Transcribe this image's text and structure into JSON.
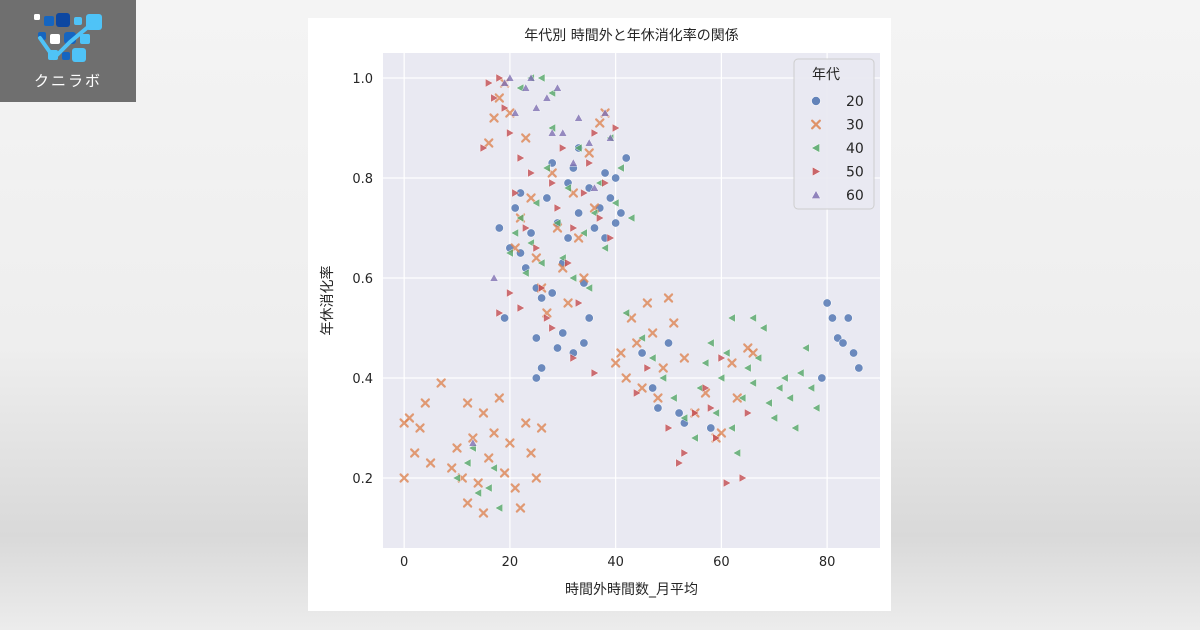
{
  "brand": {
    "logo_text": "クニラボ",
    "badge_color": "#6f6f6f",
    "logo_colors": [
      "#ffffff",
      "#4fc3f7",
      "#1565c0",
      "#0d47a1"
    ]
  },
  "chart_data": {
    "type": "scatter",
    "title": "年代別 時間外と年休消化率の関係",
    "xlabel": "時間外時間数_月平均",
    "ylabel": "年休消化率",
    "xlim": [
      -4,
      90
    ],
    "ylim": [
      0.06,
      1.05
    ],
    "xticks": [
      "0",
      "20",
      "40",
      "60",
      "80"
    ],
    "yticks": [
      "0.2",
      "0.4",
      "0.6",
      "0.8",
      "1.0"
    ],
    "grid": true,
    "background": "#e9e9f2",
    "legend": {
      "title": "年代",
      "placement": "top-right"
    },
    "series": [
      {
        "name": "20",
        "marker": "circle",
        "color": "#4c72b0",
        "points": [
          [
            18,
            0.7
          ],
          [
            19,
            0.52
          ],
          [
            20,
            0.66
          ],
          [
            21,
            0.74
          ],
          [
            22,
            0.77
          ],
          [
            22,
            0.65
          ],
          [
            23,
            0.62
          ],
          [
            24,
            0.69
          ],
          [
            25,
            0.58
          ],
          [
            25,
            0.48
          ],
          [
            26,
            0.56
          ],
          [
            27,
            0.76
          ],
          [
            28,
            0.83
          ],
          [
            28,
            0.57
          ],
          [
            29,
            0.71
          ],
          [
            30,
            0.63
          ],
          [
            30,
            0.49
          ],
          [
            31,
            0.79
          ],
          [
            31,
            0.68
          ],
          [
            32,
            0.82
          ],
          [
            33,
            0.86
          ],
          [
            33,
            0.73
          ],
          [
            34,
            0.59
          ],
          [
            35,
            0.78
          ],
          [
            35,
            0.52
          ],
          [
            36,
            0.7
          ],
          [
            37,
            0.74
          ],
          [
            38,
            0.81
          ],
          [
            38,
            0.68
          ],
          [
            39,
            0.76
          ],
          [
            40,
            0.71
          ],
          [
            40,
            0.8
          ],
          [
            41,
            0.73
          ],
          [
            42,
            0.84
          ],
          [
            25,
            0.4
          ],
          [
            26,
            0.42
          ],
          [
            29,
            0.46
          ],
          [
            32,
            0.45
          ],
          [
            34,
            0.47
          ],
          [
            45,
            0.45
          ],
          [
            47,
            0.38
          ],
          [
            48,
            0.34
          ],
          [
            50,
            0.47
          ],
          [
            52,
            0.33
          ],
          [
            53,
            0.31
          ],
          [
            58,
            0.3
          ],
          [
            80,
            0.55
          ],
          [
            81,
            0.52
          ],
          [
            82,
            0.48
          ],
          [
            83,
            0.47
          ],
          [
            84,
            0.52
          ],
          [
            85,
            0.45
          ],
          [
            86,
            0.42
          ],
          [
            79,
            0.4
          ]
        ]
      },
      {
        "name": "30",
        "marker": "x",
        "color": "#dd8452",
        "points": [
          [
            0,
            0.31
          ],
          [
            0,
            0.2
          ],
          [
            1,
            0.32
          ],
          [
            2,
            0.25
          ],
          [
            3,
            0.3
          ],
          [
            4,
            0.35
          ],
          [
            5,
            0.23
          ],
          [
            7,
            0.39
          ],
          [
            9,
            0.22
          ],
          [
            10,
            0.26
          ],
          [
            11,
            0.2
          ],
          [
            12,
            0.15
          ],
          [
            12,
            0.35
          ],
          [
            13,
            0.28
          ],
          [
            14,
            0.19
          ],
          [
            15,
            0.33
          ],
          [
            15,
            0.13
          ],
          [
            16,
            0.24
          ],
          [
            17,
            0.29
          ],
          [
            18,
            0.36
          ],
          [
            19,
            0.21
          ],
          [
            20,
            0.27
          ],
          [
            21,
            0.18
          ],
          [
            22,
            0.14
          ],
          [
            23,
            0.31
          ],
          [
            24,
            0.25
          ],
          [
            25,
            0.2
          ],
          [
            26,
            0.3
          ],
          [
            16,
            0.87
          ],
          [
            17,
            0.92
          ],
          [
            18,
            0.96
          ],
          [
            19,
            0.99
          ],
          [
            20,
            0.93
          ],
          [
            21,
            0.66
          ],
          [
            22,
            0.72
          ],
          [
            23,
            0.88
          ],
          [
            24,
            0.76
          ],
          [
            25,
            0.64
          ],
          [
            26,
            0.58
          ],
          [
            27,
            0.53
          ],
          [
            28,
            0.81
          ],
          [
            29,
            0.7
          ],
          [
            30,
            0.62
          ],
          [
            31,
            0.55
          ],
          [
            32,
            0.77
          ],
          [
            33,
            0.68
          ],
          [
            34,
            0.6
          ],
          [
            35,
            0.85
          ],
          [
            36,
            0.74
          ],
          [
            37,
            0.91
          ],
          [
            38,
            0.93
          ],
          [
            40,
            0.43
          ],
          [
            41,
            0.45
          ],
          [
            42,
            0.4
          ],
          [
            43,
            0.52
          ],
          [
            44,
            0.47
          ],
          [
            45,
            0.38
          ],
          [
            46,
            0.55
          ],
          [
            47,
            0.49
          ],
          [
            48,
            0.36
          ],
          [
            49,
            0.42
          ],
          [
            50,
            0.56
          ],
          [
            51,
            0.51
          ],
          [
            53,
            0.44
          ],
          [
            55,
            0.33
          ],
          [
            57,
            0.37
          ],
          [
            59,
            0.28
          ],
          [
            60,
            0.29
          ],
          [
            62,
            0.43
          ],
          [
            63,
            0.36
          ],
          [
            65,
            0.46
          ],
          [
            66,
            0.45
          ]
        ]
      },
      {
        "name": "40",
        "marker": "triangle-left",
        "color": "#55a868",
        "points": [
          [
            10,
            0.2
          ],
          [
            12,
            0.23
          ],
          [
            13,
            0.26
          ],
          [
            14,
            0.17
          ],
          [
            16,
            0.18
          ],
          [
            17,
            0.22
          ],
          [
            18,
            0.14
          ],
          [
            20,
            0.65
          ],
          [
            21,
            0.69
          ],
          [
            22,
            0.72
          ],
          [
            23,
            0.61
          ],
          [
            24,
            0.67
          ],
          [
            25,
            0.75
          ],
          [
            26,
            0.63
          ],
          [
            27,
            0.82
          ],
          [
            28,
            0.9
          ],
          [
            29,
            0.71
          ],
          [
            30,
            0.64
          ],
          [
            31,
            0.78
          ],
          [
            32,
            0.6
          ],
          [
            33,
            0.86
          ],
          [
            34,
            0.69
          ],
          [
            35,
            0.58
          ],
          [
            36,
            0.73
          ],
          [
            37,
            0.79
          ],
          [
            38,
            0.66
          ],
          [
            39,
            0.88
          ],
          [
            40,
            0.75
          ],
          [
            41,
            0.82
          ],
          [
            43,
            0.72
          ],
          [
            22,
            0.98
          ],
          [
            24,
            1.0
          ],
          [
            26,
            1.0
          ],
          [
            28,
            0.97
          ],
          [
            42,
            0.53
          ],
          [
            45,
            0.48
          ],
          [
            47,
            0.44
          ],
          [
            49,
            0.4
          ],
          [
            51,
            0.36
          ],
          [
            53,
            0.32
          ],
          [
            55,
            0.28
          ],
          [
            56,
            0.38
          ],
          [
            57,
            0.43
          ],
          [
            58,
            0.47
          ],
          [
            59,
            0.33
          ],
          [
            60,
            0.4
          ],
          [
            61,
            0.45
          ],
          [
            62,
            0.3
          ],
          [
            63,
            0.25
          ],
          [
            64,
            0.36
          ],
          [
            65,
            0.42
          ],
          [
            66,
            0.39
          ],
          [
            67,
            0.44
          ],
          [
            68,
            0.5
          ],
          [
            69,
            0.35
          ],
          [
            70,
            0.32
          ],
          [
            71,
            0.38
          ],
          [
            72,
            0.4
          ],
          [
            73,
            0.36
          ],
          [
            74,
            0.3
          ],
          [
            75,
            0.41
          ],
          [
            76,
            0.46
          ],
          [
            77,
            0.38
          ],
          [
            78,
            0.34
          ],
          [
            62,
            0.52
          ],
          [
            66,
            0.52
          ]
        ]
      },
      {
        "name": "50",
        "marker": "triangle-right",
        "color": "#c44e52",
        "points": [
          [
            15,
            0.86
          ],
          [
            16,
            0.99
          ],
          [
            17,
            0.96
          ],
          [
            18,
            1.0
          ],
          [
            19,
            0.94
          ],
          [
            20,
            0.89
          ],
          [
            21,
            0.77
          ],
          [
            22,
            0.84
          ],
          [
            23,
            0.7
          ],
          [
            24,
            0.81
          ],
          [
            25,
            0.66
          ],
          [
            26,
            0.58
          ],
          [
            27,
            0.52
          ],
          [
            28,
            0.79
          ],
          [
            29,
            0.74
          ],
          [
            30,
            0.86
          ],
          [
            31,
            0.63
          ],
          [
            32,
            0.7
          ],
          [
            33,
            0.55
          ],
          [
            34,
            0.77
          ],
          [
            35,
            0.83
          ],
          [
            36,
            0.89
          ],
          [
            37,
            0.72
          ],
          [
            38,
            0.79
          ],
          [
            39,
            0.68
          ],
          [
            40,
            0.9
          ],
          [
            18,
            0.53
          ],
          [
            20,
            0.57
          ],
          [
            22,
            0.54
          ],
          [
            28,
            0.5
          ],
          [
            32,
            0.44
          ],
          [
            36,
            0.41
          ],
          [
            44,
            0.37
          ],
          [
            46,
            0.42
          ],
          [
            50,
            0.3
          ],
          [
            52,
            0.23
          ],
          [
            53,
            0.25
          ],
          [
            55,
            0.33
          ],
          [
            57,
            0.38
          ],
          [
            58,
            0.34
          ],
          [
            59,
            0.28
          ],
          [
            60,
            0.44
          ],
          [
            61,
            0.19
          ],
          [
            64,
            0.2
          ],
          [
            65,
            0.33
          ]
        ]
      },
      {
        "name": "60",
        "marker": "triangle-up",
        "color": "#8172b3",
        "points": [
          [
            13,
            0.27
          ],
          [
            17,
            0.6
          ],
          [
            19,
            0.99
          ],
          [
            20,
            1.0
          ],
          [
            21,
            0.93
          ],
          [
            23,
            0.98
          ],
          [
            24,
            1.0
          ],
          [
            25,
            0.94
          ],
          [
            27,
            0.96
          ],
          [
            28,
            0.89
          ],
          [
            29,
            0.98
          ],
          [
            30,
            0.89
          ],
          [
            32,
            0.83
          ],
          [
            33,
            0.92
          ],
          [
            35,
            0.87
          ],
          [
            36,
            0.78
          ],
          [
            38,
            0.93
          ],
          [
            39,
            0.88
          ]
        ]
      }
    ]
  }
}
